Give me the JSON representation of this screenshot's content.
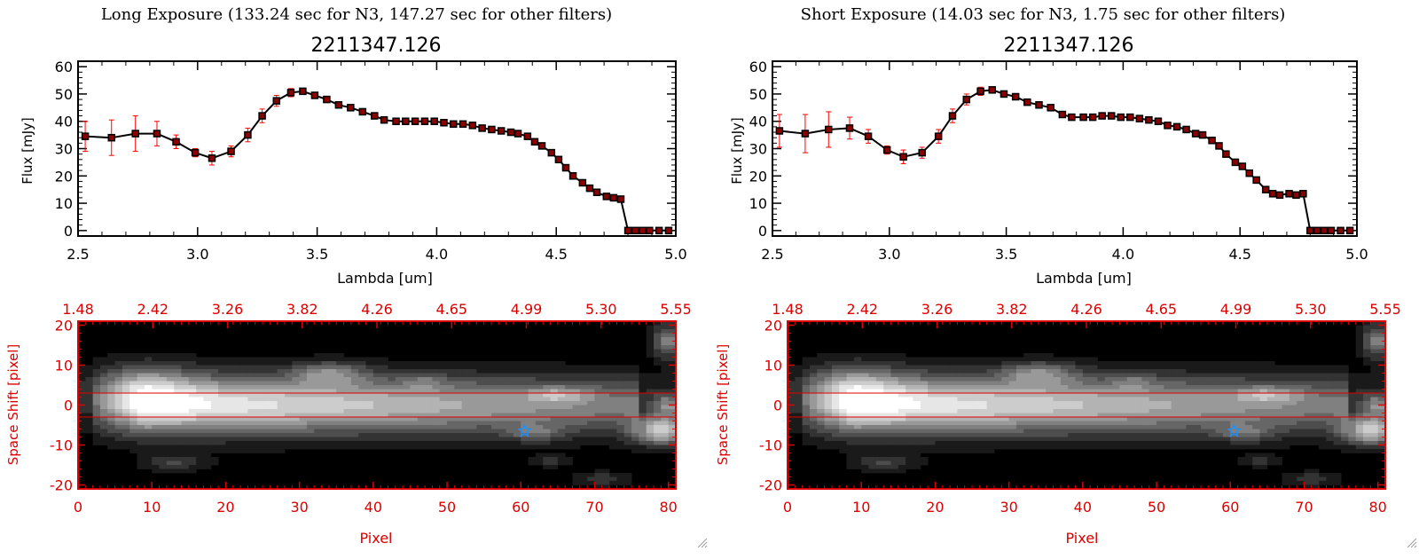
{
  "chart_data": [
    {
      "type": "line",
      "panel": "left-top",
      "heading": "Long Exposure (133.24 sec for N3, 147.27 sec for other filters)",
      "title": "2211347.126",
      "xlabel": "Lambda [um]",
      "ylabel": "Flux [mJy]",
      "xlim": [
        2.5,
        5.0
      ],
      "ylim": [
        -2,
        62
      ],
      "xticks": [
        "2.5",
        "3.0",
        "3.5",
        "4.0",
        "4.5",
        "5.0"
      ],
      "yticks": [
        "0",
        "10",
        "20",
        "30",
        "40",
        "50",
        "60"
      ],
      "x": [
        2.53,
        2.64,
        2.74,
        2.83,
        2.91,
        2.99,
        3.06,
        3.14,
        3.21,
        3.27,
        3.33,
        3.39,
        3.44,
        3.49,
        3.54,
        3.59,
        3.64,
        3.69,
        3.74,
        3.78,
        3.83,
        3.87,
        3.91,
        3.95,
        3.99,
        4.03,
        4.07,
        4.11,
        4.15,
        4.19,
        4.23,
        4.27,
        4.31,
        4.34,
        4.38,
        4.41,
        4.44,
        4.48,
        4.51,
        4.54,
        4.57,
        4.61,
        4.64,
        4.67,
        4.71,
        4.74,
        4.77,
        4.8,
        4.83,
        4.86,
        4.89,
        4.93,
        4.97
      ],
      "y": [
        34.5,
        34,
        35.5,
        35.5,
        32.5,
        28.5,
        26.5,
        29,
        35,
        42,
        47.5,
        50.5,
        51,
        49.5,
        48,
        46,
        45,
        43.5,
        42,
        40.5,
        40,
        40,
        40,
        40,
        40,
        39.5,
        39,
        39,
        38.5,
        37.5,
        37,
        36.5,
        36,
        35.5,
        34.5,
        32.5,
        31,
        28.5,
        26,
        23,
        20,
        17.5,
        15.5,
        14,
        12.5,
        12,
        11.5,
        0,
        0,
        0,
        0,
        0,
        0
      ],
      "err": [
        5.5,
        6.5,
        6.5,
        4.5,
        2.5,
        1.5,
        2.5,
        2,
        2.5,
        2.5,
        2,
        1.5,
        1,
        1,
        1,
        1,
        1,
        1,
        1,
        1,
        1,
        1,
        1,
        1,
        1,
        1,
        1,
        1,
        1,
        1,
        1,
        1,
        1,
        1,
        1,
        1,
        1,
        1,
        1,
        1,
        1,
        1,
        1,
        1,
        1,
        1,
        1,
        0,
        0,
        0,
        0,
        0,
        0
      ]
    },
    {
      "type": "line",
      "panel": "right-top",
      "heading": "Short Exposure (14.03 sec for N3, 1.75 sec for other filters)",
      "title": "2211347.126",
      "xlabel": "Lambda [um]",
      "ylabel": "Flux [mJy]",
      "xlim": [
        2.5,
        5.0
      ],
      "ylim": [
        -2,
        62
      ],
      "xticks": [
        "2.5",
        "3.0",
        "3.5",
        "4.0",
        "4.5",
        "5.0"
      ],
      "yticks": [
        "0",
        "10",
        "20",
        "30",
        "40",
        "50",
        "60"
      ],
      "x": [
        2.53,
        2.64,
        2.74,
        2.83,
        2.91,
        2.99,
        3.06,
        3.14,
        3.21,
        3.27,
        3.33,
        3.39,
        3.44,
        3.49,
        3.54,
        3.59,
        3.64,
        3.69,
        3.74,
        3.78,
        3.83,
        3.87,
        3.91,
        3.95,
        3.99,
        4.03,
        4.07,
        4.11,
        4.15,
        4.19,
        4.23,
        4.27,
        4.31,
        4.34,
        4.38,
        4.41,
        4.44,
        4.48,
        4.51,
        4.54,
        4.57,
        4.61,
        4.64,
        4.67,
        4.71,
        4.74,
        4.77,
        4.8,
        4.83,
        4.86,
        4.89,
        4.93,
        4.97
      ],
      "y": [
        36.5,
        35.5,
        37,
        37.5,
        34.5,
        29.5,
        27,
        28.5,
        34.5,
        42,
        48,
        51,
        51.5,
        50,
        49,
        47,
        46,
        45,
        42.5,
        41.5,
        41.5,
        41.5,
        42,
        42,
        41.5,
        41.5,
        41,
        40.5,
        40,
        38.5,
        38,
        37,
        35.5,
        35,
        33,
        31,
        28,
        25,
        23.5,
        21,
        18.5,
        15,
        13.5,
        13,
        13.5,
        13,
        13.5,
        0,
        0,
        0,
        0,
        0,
        0
      ],
      "err": [
        6,
        7,
        6.5,
        4,
        2.5,
        1.5,
        2.5,
        2,
        2.5,
        2.5,
        2,
        1.5,
        1,
        1,
        1,
        1,
        1,
        1,
        1,
        1,
        1,
        1,
        1,
        1,
        1,
        1,
        1,
        1,
        1,
        1,
        1,
        1,
        1,
        1,
        1,
        1,
        1,
        1,
        1,
        1,
        1,
        1,
        1,
        1,
        1,
        1,
        1,
        0,
        0,
        0,
        0,
        0,
        0
      ]
    },
    {
      "type": "heatmap",
      "panel": "left-bottom",
      "xlabel": "Pixel",
      "ylabel": "Space Shift [pixel]",
      "xlim": [
        0,
        81
      ],
      "ylim": [
        -21,
        21
      ],
      "xticks": [
        "0",
        "10",
        "20",
        "30",
        "40",
        "50",
        "60",
        "70",
        "80"
      ],
      "yticks": [
        "-20",
        "-10",
        "0",
        "10",
        "20"
      ],
      "top_ticks": [
        "1.48",
        "2.42",
        "3.26",
        "3.82",
        "4.26",
        "4.65",
        "4.99",
        "5.30",
        "5.55"
      ],
      "lines_y": [
        3,
        -3
      ],
      "marker": {
        "symbol": "star",
        "x": 60.5,
        "y": -6.5
      },
      "band": {
        "center_y": 0,
        "peak_x": 9,
        "width_y": 5
      },
      "blobs": [
        {
          "x": 9,
          "y": 5,
          "sx": 5,
          "sy": 4,
          "a": 0.3
        },
        {
          "x": 34,
          "y": 8,
          "sx": 3.5,
          "sy": 2,
          "a": 0.38
        },
        {
          "x": 13,
          "y": -14.5,
          "sx": 3,
          "sy": 1.5,
          "a": 0.25
        },
        {
          "x": 79,
          "y": -6.5,
          "sx": 2.5,
          "sy": 2.5,
          "a": 0.75
        },
        {
          "x": 80,
          "y": 16,
          "sx": 1.5,
          "sy": 3,
          "a": 0.5
        },
        {
          "x": 80,
          "y": 0,
          "sx": 1.3,
          "sy": 2,
          "a": 0.4
        },
        {
          "x": 65,
          "y": 2.5,
          "sx": 3,
          "sy": 1.3,
          "a": 0.3
        },
        {
          "x": 62,
          "y": -7,
          "sx": 2.5,
          "sy": 1.5,
          "a": 0.28
        },
        {
          "x": 64,
          "y": -14,
          "sx": 2,
          "sy": 1,
          "a": 0.2
        },
        {
          "x": 71,
          "y": -18.5,
          "sx": 2.5,
          "sy": 1.3,
          "a": 0.22
        },
        {
          "x": 47,
          "y": 6,
          "sx": 2,
          "sy": 1.5,
          "a": 0.18
        }
      ]
    },
    {
      "type": "heatmap",
      "panel": "right-bottom",
      "xlabel": "Pixel",
      "ylabel": "Space Shift [pixel]",
      "xlim": [
        0,
        81
      ],
      "ylim": [
        -21,
        21
      ],
      "xticks": [
        "0",
        "10",
        "20",
        "30",
        "40",
        "50",
        "60",
        "70",
        "80"
      ],
      "yticks": [
        "-20",
        "-10",
        "0",
        "10",
        "20"
      ],
      "top_ticks": [
        "1.48",
        "2.42",
        "3.26",
        "3.82",
        "4.26",
        "4.65",
        "4.99",
        "5.30",
        "5.55"
      ],
      "lines_y": [
        3,
        -3
      ],
      "marker": {
        "symbol": "star",
        "x": 60.5,
        "y": -6.5
      },
      "band": {
        "center_y": 0,
        "peak_x": 9,
        "width_y": 5
      },
      "blobs": [
        {
          "x": 9,
          "y": 5,
          "sx": 5,
          "sy": 4,
          "a": 0.3
        },
        {
          "x": 34,
          "y": 8,
          "sx": 3.5,
          "sy": 2,
          "a": 0.38
        },
        {
          "x": 13,
          "y": -14.5,
          "sx": 3,
          "sy": 1.5,
          "a": 0.25
        },
        {
          "x": 79,
          "y": -6.5,
          "sx": 2.5,
          "sy": 2.5,
          "a": 0.75
        },
        {
          "x": 80,
          "y": 16,
          "sx": 1.5,
          "sy": 3,
          "a": 0.5
        },
        {
          "x": 80,
          "y": 0,
          "sx": 1.3,
          "sy": 2,
          "a": 0.4
        },
        {
          "x": 65,
          "y": 2.5,
          "sx": 3,
          "sy": 1.3,
          "a": 0.3
        },
        {
          "x": 62,
          "y": -7,
          "sx": 2.5,
          "sy": 1.5,
          "a": 0.28
        },
        {
          "x": 64,
          "y": -14,
          "sx": 2,
          "sy": 1,
          "a": 0.2
        },
        {
          "x": 71,
          "y": -18.5,
          "sx": 2.5,
          "sy": 1.3,
          "a": 0.22
        },
        {
          "x": 47,
          "y": 6,
          "sx": 2,
          "sy": 1.5,
          "a": 0.18
        }
      ]
    }
  ],
  "colors": {
    "axis": "#000000",
    "data": "#000000",
    "marker_fill": "#8b0000",
    "errorbar": "#ff0000",
    "image_axis": "#dd0000",
    "star": "#1e90ff",
    "background": "#ffffff"
  },
  "icons": [
    "resize-grip-icon",
    "resize-grip-icon"
  ]
}
